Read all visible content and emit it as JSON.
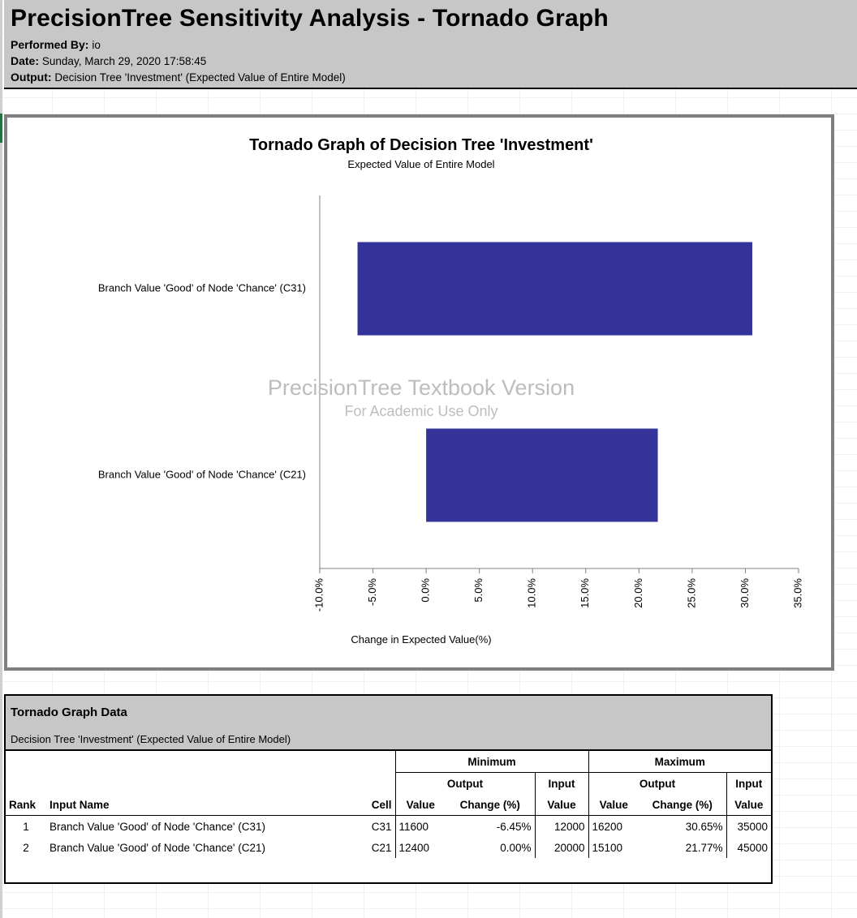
{
  "header": {
    "title": "PrecisionTree Sensitivity Analysis - Tornado Graph",
    "performed_by_label": "Performed By:",
    "performed_by_value": "io",
    "date_label": "Date:",
    "date_value": "Sunday, March 29, 2020 17:58:45",
    "output_label": "Output:",
    "output_value": "Decision Tree 'Investment' (Expected Value of Entire Model)"
  },
  "chart_data": {
    "type": "bar",
    "orientation": "horizontal-tornado",
    "title": "Tornado Graph of Decision Tree 'Investment'",
    "subtitle": "Expected Value of Entire Model",
    "xlabel": "Change in Expected Value(%)",
    "ylabel": "",
    "xlim": [
      -10,
      35
    ],
    "x_ticks": [
      -10,
      -5,
      0,
      5,
      10,
      15,
      20,
      25,
      30,
      35
    ],
    "x_tick_labels": [
      "-10.0%",
      "-5.0%",
      "0.0%",
      "5.0%",
      "10.0%",
      "15.0%",
      "20.0%",
      "25.0%",
      "30.0%",
      "35.0%"
    ],
    "categories": [
      "Branch Value 'Good' of Node 'Chance' (C31)",
      "Branch Value 'Good' of Node 'Chance' (C21)"
    ],
    "ranges": [
      [
        -6.45,
        30.65
      ],
      [
        0.0,
        21.77
      ]
    ],
    "bar_color": "#333399",
    "grid": false,
    "legend": "none",
    "watermark": {
      "line1": "PrecisionTree Textbook Version",
      "line2": "For Academic Use Only"
    }
  },
  "table": {
    "title": "Tornado Graph Data",
    "subtitle": "Decision Tree 'Investment' (Expected Value of Entire Model)",
    "group_minimum": "Minimum",
    "group_maximum": "Maximum",
    "sub_output": "Output",
    "sub_input": "Input",
    "col_rank": "Rank",
    "col_input_name": "Input Name",
    "col_cell": "Cell",
    "col_value": "Value",
    "col_change": "Change (%)",
    "rows": [
      {
        "rank": "1",
        "name": "Branch Value 'Good' of Node 'Chance' (C31)",
        "cell": "C31",
        "min_value": "11600",
        "min_change": "-6.45%",
        "min_input": "12000",
        "max_value": "16200",
        "max_change": "30.65%",
        "max_input": "35000"
      },
      {
        "rank": "2",
        "name": "Branch Value 'Good' of Node 'Chance' (C21)",
        "cell": "C21",
        "min_value": "12400",
        "min_change": "0.00%",
        "min_input": "20000",
        "max_value": "15100",
        "max_change": "21.77%",
        "max_input": "45000"
      }
    ]
  }
}
